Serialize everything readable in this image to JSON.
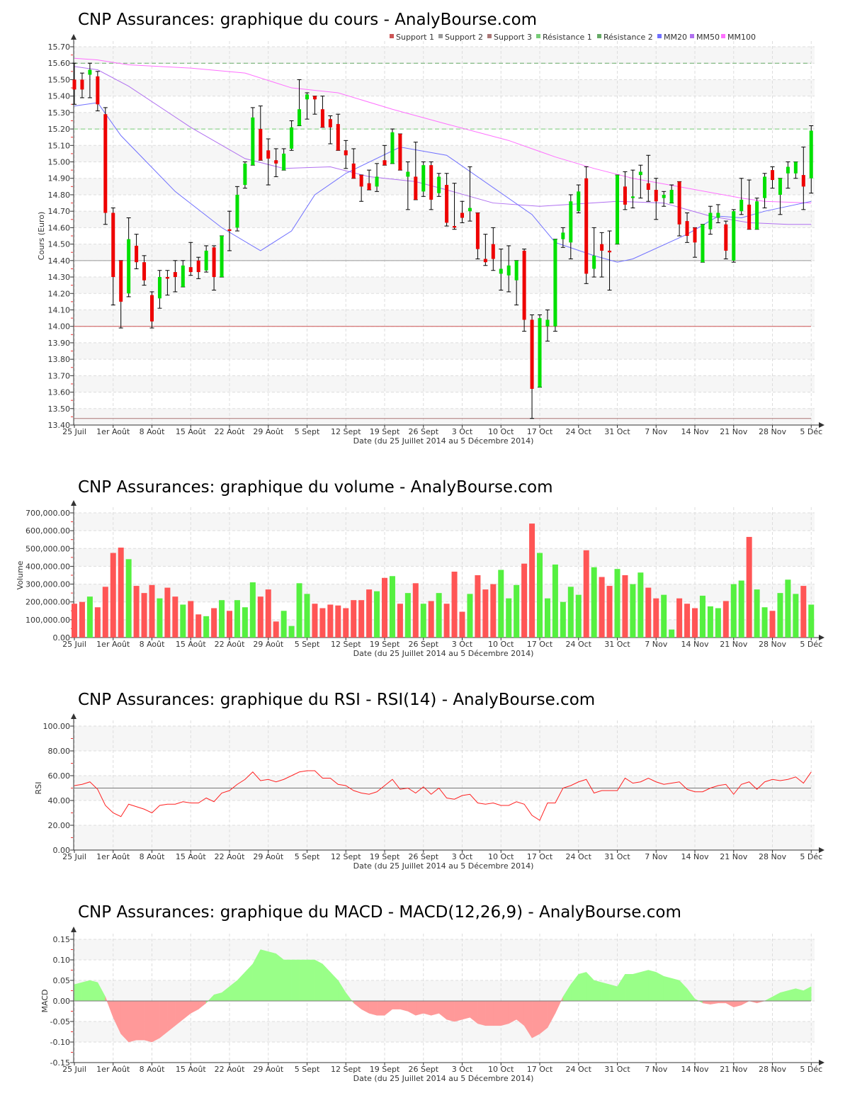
{
  "chart_data": [
    {
      "type": "candlestick",
      "title": "CNP Assurances: graphique du cours - AnalyBourse.com",
      "xlabel": "Date (du 25 Juillet 2014 au 5 Décembre 2014)",
      "ylabel": "Cours (Euro)",
      "ylim": [
        13.4,
        15.7
      ],
      "yticks": [
        "15.70",
        "15.60",
        "15.50",
        "15.40",
        "15.30",
        "15.20",
        "15.10",
        "15.00",
        "14.90",
        "14.80",
        "14.70",
        "14.60",
        "14.50",
        "14.40",
        "14.30",
        "14.20",
        "14.10",
        "14.00",
        "13.90",
        "13.80",
        "13.70",
        "13.60",
        "13.50",
        "13.40"
      ],
      "legend": [
        "Support 1",
        "Support 2",
        "Support 3",
        "Résistance 1",
        "Résistance 2",
        "MM20",
        "MM50",
        "MM100"
      ],
      "levels": {
        "support1": 14.0,
        "support2": 14.4,
        "support3": 13.44,
        "resistance1": 15.2,
        "resistance2": 15.6
      },
      "ohlc": [
        [
          15.5,
          15.6,
          15.35,
          15.44
        ],
        [
          15.5,
          15.54,
          15.39,
          15.44
        ],
        [
          15.53,
          15.6,
          15.39,
          15.56
        ],
        [
          15.52,
          15.55,
          15.31,
          15.35
        ],
        [
          15.29,
          15.33,
          14.62,
          14.69
        ],
        [
          14.69,
          14.72,
          14.13,
          14.3
        ],
        [
          14.4,
          14.4,
          13.99,
          14.15
        ],
        [
          14.2,
          14.66,
          14.18,
          14.53
        ],
        [
          14.49,
          14.56,
          14.35,
          14.39
        ],
        [
          14.39,
          14.43,
          14.25,
          14.28
        ],
        [
          14.19,
          14.21,
          13.99,
          14.03
        ],
        [
          14.17,
          14.34,
          14.11,
          14.3
        ],
        [
          14.3,
          14.34,
          14.19,
          14.29
        ],
        [
          14.33,
          14.4,
          14.21,
          14.3
        ],
        [
          14.24,
          14.4,
          14.24,
          14.37
        ],
        [
          14.36,
          14.51,
          14.31,
          14.33
        ],
        [
          14.4,
          14.42,
          14.29,
          14.33
        ],
        [
          14.34,
          14.49,
          14.33,
          14.46
        ],
        [
          14.48,
          14.49,
          14.22,
          14.3
        ],
        [
          14.3,
          14.55,
          14.3,
          14.55
        ],
        [
          14.59,
          14.7,
          14.46,
          14.58
        ],
        [
          14.6,
          14.85,
          14.58,
          14.8
        ],
        [
          14.86,
          15.0,
          14.84,
          14.99
        ],
        [
          14.98,
          15.33,
          14.98,
          15.27
        ],
        [
          15.2,
          15.34,
          15.01,
          15.01
        ],
        [
          15.07,
          15.14,
          14.86,
          15.02
        ],
        [
          15.01,
          15.08,
          14.91,
          14.99
        ],
        [
          14.95,
          15.08,
          14.95,
          15.05
        ],
        [
          15.08,
          15.25,
          15.07,
          15.21
        ],
        [
          15.22,
          15.5,
          15.22,
          15.32
        ],
        [
          15.38,
          15.42,
          15.26,
          15.41
        ],
        [
          15.4,
          15.4,
          15.29,
          15.38
        ],
        [
          15.32,
          15.4,
          15.21,
          15.21
        ],
        [
          15.26,
          15.28,
          15.11,
          15.21
        ],
        [
          15.23,
          15.29,
          15.07,
          15.07
        ],
        [
          15.07,
          15.13,
          14.96,
          15.04
        ],
        [
          14.99,
          15.08,
          14.9,
          14.9
        ],
        [
          14.92,
          14.92,
          14.76,
          14.85
        ],
        [
          14.87,
          14.95,
          14.83,
          14.83
        ],
        [
          14.85,
          14.99,
          14.82,
          14.91
        ],
        [
          15.01,
          15.1,
          14.98,
          14.98
        ],
        [
          14.99,
          15.2,
          14.99,
          15.18
        ],
        [
          15.17,
          15.17,
          14.95,
          14.95
        ],
        [
          14.91,
          15.0,
          14.71,
          14.94
        ],
        [
          14.91,
          15.12,
          14.77,
          14.77
        ],
        [
          14.82,
          15.0,
          14.79,
          14.98
        ],
        [
          14.98,
          15.0,
          14.71,
          14.77
        ],
        [
          14.81,
          14.93,
          14.79,
          14.91
        ],
        [
          14.86,
          14.93,
          14.61,
          14.63
        ],
        [
          14.61,
          14.87,
          14.59,
          14.6
        ],
        [
          14.69,
          14.76,
          14.63,
          14.66
        ],
        [
          14.7,
          14.97,
          14.64,
          14.72
        ],
        [
          14.69,
          14.69,
          14.41,
          14.47
        ],
        [
          14.41,
          14.56,
          14.37,
          14.39
        ],
        [
          14.5,
          14.6,
          14.34,
          14.41
        ],
        [
          14.32,
          14.47,
          14.22,
          14.35
        ],
        [
          14.31,
          14.49,
          14.21,
          14.37
        ],
        [
          14.28,
          14.4,
          14.13,
          14.4
        ],
        [
          14.46,
          14.47,
          13.97,
          14.04
        ],
        [
          14.04,
          14.07,
          13.44,
          13.62
        ],
        [
          13.63,
          14.07,
          13.63,
          14.05
        ],
        [
          14.0,
          14.1,
          13.91,
          14.04
        ],
        [
          14.0,
          14.53,
          13.97,
          14.53
        ],
        [
          14.53,
          14.6,
          14.48,
          14.57
        ],
        [
          14.51,
          14.8,
          14.41,
          14.76
        ],
        [
          14.7,
          14.86,
          14.69,
          14.82
        ],
        [
          14.9,
          14.97,
          14.26,
          14.32
        ],
        [
          14.35,
          14.6,
          14.3,
          14.43
        ],
        [
          14.5,
          14.57,
          14.3,
          14.46
        ],
        [
          14.46,
          14.58,
          14.22,
          14.45
        ],
        [
          14.5,
          14.92,
          14.5,
          14.92
        ],
        [
          14.85,
          14.94,
          14.71,
          14.74
        ],
        [
          14.78,
          14.95,
          14.72,
          14.79
        ],
        [
          14.92,
          14.98,
          14.78,
          14.94
        ],
        [
          14.87,
          15.04,
          14.76,
          14.83
        ],
        [
          14.83,
          14.9,
          14.65,
          14.76
        ],
        [
          14.78,
          14.82,
          14.73,
          14.8
        ],
        [
          14.75,
          14.86,
          14.75,
          14.83
        ],
        [
          14.88,
          14.88,
          14.55,
          14.62
        ],
        [
          14.64,
          14.69,
          14.51,
          14.55
        ],
        [
          14.6,
          14.6,
          14.42,
          14.51
        ],
        [
          14.39,
          14.62,
          14.39,
          14.62
        ],
        [
          14.59,
          14.73,
          14.56,
          14.69
        ],
        [
          14.66,
          14.74,
          14.63,
          14.69
        ],
        [
          14.62,
          14.64,
          14.41,
          14.46
        ],
        [
          14.4,
          14.71,
          14.39,
          14.7
        ],
        [
          14.7,
          14.9,
          14.68,
          14.77
        ],
        [
          14.74,
          14.89,
          14.59,
          14.59
        ],
        [
          14.59,
          14.78,
          14.59,
          14.76
        ],
        [
          14.78,
          14.93,
          14.72,
          14.91
        ],
        [
          14.95,
          14.97,
          14.84,
          14.89
        ],
        [
          14.8,
          14.9,
          14.68,
          14.9
        ],
        [
          14.93,
          15.0,
          14.84,
          14.97
        ],
        [
          14.93,
          15.0,
          14.9,
          15.0
        ],
        [
          14.92,
          15.09,
          14.71,
          14.85
        ],
        [
          14.9,
          15.22,
          14.81,
          15.19
        ]
      ],
      "ma20": [
        [
          0,
          15.34
        ],
        [
          3,
          15.36
        ],
        [
          6,
          15.16
        ],
        [
          13,
          14.82
        ],
        [
          19,
          14.6
        ],
        [
          24,
          14.46
        ],
        [
          28,
          14.58
        ],
        [
          31,
          14.8
        ],
        [
          35,
          14.93
        ],
        [
          42,
          15.09
        ],
        [
          48,
          15.04
        ],
        [
          59,
          14.68
        ],
        [
          62,
          14.51
        ],
        [
          67,
          14.43
        ],
        [
          70,
          14.39
        ],
        [
          72,
          14.41
        ],
        [
          79,
          14.56
        ],
        [
          83,
          14.67
        ],
        [
          86,
          14.66
        ],
        [
          89,
          14.7
        ],
        [
          95,
          14.76
        ]
      ],
      "ma50": [
        [
          0,
          15.58
        ],
        [
          3,
          15.56
        ],
        [
          7,
          15.46
        ],
        [
          15,
          15.21
        ],
        [
          22,
          15.02
        ],
        [
          27,
          14.96
        ],
        [
          33,
          14.97
        ],
        [
          38,
          14.91
        ],
        [
          44,
          14.88
        ],
        [
          48,
          14.83
        ],
        [
          54,
          14.75
        ],
        [
          60,
          14.73
        ],
        [
          70,
          14.76
        ],
        [
          76,
          14.75
        ],
        [
          79,
          14.71
        ],
        [
          82,
          14.67
        ],
        [
          87,
          14.63
        ],
        [
          92,
          14.62
        ],
        [
          95,
          14.62
        ]
      ],
      "ma100": [
        [
          0,
          15.63
        ],
        [
          3,
          15.62
        ],
        [
          7,
          15.59
        ],
        [
          15,
          15.57
        ],
        [
          22,
          15.54
        ],
        [
          28,
          15.45
        ],
        [
          34,
          15.42
        ],
        [
          41,
          15.32
        ],
        [
          48,
          15.23
        ],
        [
          56,
          15.13
        ],
        [
          62,
          15.03
        ],
        [
          67,
          14.96
        ],
        [
          72,
          14.9
        ],
        [
          79,
          14.84
        ],
        [
          86,
          14.78
        ],
        [
          89,
          14.76
        ],
        [
          95,
          14.75
        ]
      ]
    },
    {
      "type": "bar",
      "title": "CNP Assurances: graphique du volume - AnalyBourse.com",
      "xlabel": "Date (du 25 Juillet 2014 au 5 Décembre 2014)",
      "ylabel": "Volume",
      "ylim": [
        0,
        700000
      ],
      "yticks": [
        "0.00",
        "100,000.00",
        "200,000.00",
        "300,000.00",
        "400,000.00",
        "500,000.00",
        "600,000.00",
        "700,000.00"
      ],
      "values": [
        190,
        200,
        230,
        170,
        285,
        475,
        505,
        440,
        290,
        250,
        295,
        220,
        280,
        230,
        185,
        205,
        130,
        120,
        165,
        210,
        150,
        210,
        170,
        310,
        230,
        270,
        90,
        150,
        65,
        305,
        245,
        190,
        165,
        185,
        180,
        165,
        210,
        210,
        270,
        260,
        335,
        345,
        190,
        250,
        305,
        190,
        205,
        250,
        190,
        370,
        145,
        245,
        350,
        270,
        300,
        380,
        220,
        295,
        415,
        640,
        475,
        220,
        410,
        200,
        285,
        240,
        490,
        395,
        340,
        290,
        385,
        350,
        300,
        365,
        280,
        220,
        240,
        45,
        220,
        190,
        165,
        235,
        175,
        165,
        205,
        300,
        320,
        565,
        270,
        170,
        150,
        250,
        325,
        245,
        290,
        185
      ],
      "units_multiplier": 1000
    },
    {
      "type": "line",
      "title": "CNP Assurances: graphique du RSI - RSI(14) - AnalyBourse.com",
      "xlabel": "Date (du 25 Juillet 2014 au 5 Décembre 2014)",
      "ylabel": "RSI",
      "ylim": [
        0,
        100
      ],
      "yticks": [
        "0.00",
        "20.00",
        "40.00",
        "60.00",
        "80.00",
        "100.00"
      ],
      "reference": 50,
      "values": [
        52,
        53,
        55,
        49,
        36,
        30,
        27,
        37,
        35,
        33,
        30,
        36,
        37,
        37,
        39,
        38,
        38,
        42,
        39,
        46,
        48,
        53,
        57,
        63,
        56,
        57,
        55,
        57,
        60,
        63,
        64,
        64,
        58,
        58,
        53,
        52,
        48,
        46,
        45,
        47,
        52,
        57,
        49,
        50,
        46,
        51,
        45,
        50,
        42,
        41,
        44,
        45,
        38,
        37,
        38,
        36,
        36,
        39,
        37,
        28,
        24,
        38,
        38,
        50,
        52,
        55,
        57,
        46,
        48,
        48,
        48,
        58,
        54,
        55,
        58,
        55,
        53,
        54,
        55,
        49,
        47,
        47,
        50,
        52,
        53,
        45,
        53,
        55,
        49,
        55,
        57,
        56,
        57,
        59,
        54,
        63
      ]
    },
    {
      "type": "area",
      "title": "CNP Assurances: graphique du MACD - MACD(12,26,9) - AnalyBourse.com",
      "xlabel": "Date (du 25 Juillet 2014 au 5 Décembre 2014)",
      "ylabel": "MACD",
      "ylim": [
        -0.15,
        0.15
      ],
      "yticks": [
        "-0.15",
        "-0.10",
        "-0.05",
        "0.00",
        "0.05",
        "0.10",
        "0.15"
      ],
      "values": [
        0.04,
        0.045,
        0.05,
        0.045,
        0.01,
        -0.04,
        -0.08,
        -0.1,
        -0.095,
        -0.095,
        -0.1,
        -0.09,
        -0.075,
        -0.06,
        -0.045,
        -0.03,
        -0.02,
        -0.005,
        0.015,
        0.02,
        0.035,
        0.05,
        0.07,
        0.09,
        0.125,
        0.12,
        0.115,
        0.1,
        0.1,
        0.1,
        0.1,
        0.1,
        0.09,
        0.07,
        0.05,
        0.02,
        -0.005,
        -0.02,
        -0.03,
        -0.035,
        -0.035,
        -0.02,
        -0.02,
        -0.025,
        -0.035,
        -0.03,
        -0.035,
        -0.03,
        -0.045,
        -0.05,
        -0.045,
        -0.04,
        -0.055,
        -0.06,
        -0.06,
        -0.06,
        -0.055,
        -0.045,
        -0.06,
        -0.09,
        -0.08,
        -0.065,
        -0.03,
        0.01,
        0.04,
        0.065,
        0.07,
        0.05,
        0.045,
        0.04,
        0.035,
        0.065,
        0.065,
        0.07,
        0.075,
        0.07,
        0.06,
        0.055,
        0.05,
        0.03,
        0.005,
        -0.005,
        -0.008,
        -0.005,
        -0.005,
        -0.015,
        -0.01,
        0,
        -0.005,
        0,
        0.01,
        0.02,
        0.025,
        0.03,
        0.025,
        0.035
      ]
    }
  ],
  "date_ticks": [
    {
      "i": 0,
      "label": "25 Juil"
    },
    {
      "i": 5,
      "label": "1er Août"
    },
    {
      "i": 10,
      "label": "8 Août"
    },
    {
      "i": 15,
      "label": "15 Août"
    },
    {
      "i": 20,
      "label": "22 Août"
    },
    {
      "i": 25,
      "label": "29 Août"
    },
    {
      "i": 30,
      "label": "5 Sept"
    },
    {
      "i": 35,
      "label": "12 Sept"
    },
    {
      "i": 40,
      "label": "19 Sept"
    },
    {
      "i": 45,
      "label": "26 Sept"
    },
    {
      "i": 50,
      "label": "3 Oct"
    },
    {
      "i": 55,
      "label": "10 Oct"
    },
    {
      "i": 60,
      "label": "17 Oct"
    },
    {
      "i": 65,
      "label": "24 Oct"
    },
    {
      "i": 70,
      "label": "31 Oct"
    },
    {
      "i": 75,
      "label": "7 Nov"
    },
    {
      "i": 80,
      "label": "14 Nov"
    },
    {
      "i": 85,
      "label": "21 Nov"
    },
    {
      "i": 90,
      "label": "28 Nov"
    },
    {
      "i": 95,
      "label": "5 Déc"
    }
  ],
  "colors": {
    "up": "#00e000",
    "down": "#ee0000",
    "vol_up": "#55f040",
    "vol_down": "#ff5555",
    "support1": "#cc5555",
    "support2": "#999999",
    "support3": "#aa7777",
    "resistance1": "#77cc77",
    "resistance2": "#66aa66",
    "ma20": "#7070ff",
    "ma50": "#b070f0",
    "ma100": "#ff70ff",
    "rsi": "#ff2222",
    "macd_pos": "#99ff88",
    "macd_neg": "#ff9999"
  }
}
